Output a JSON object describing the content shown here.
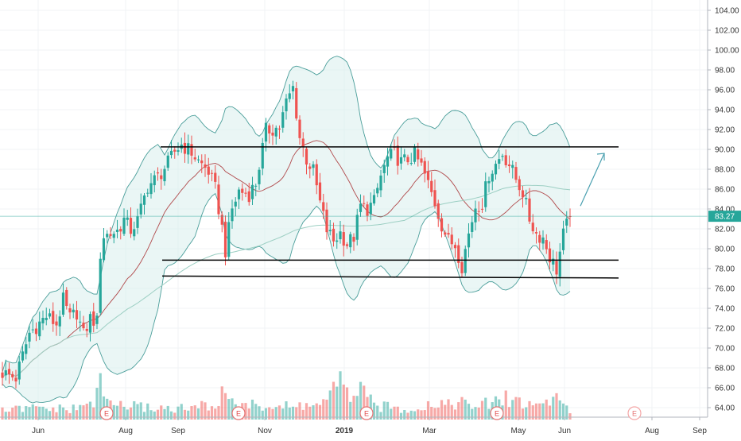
{
  "chart_data": {
    "type": "candlestick",
    "y_axis": {
      "ticks": [
        "104.00",
        "102.00",
        "100.00",
        "98.00",
        "96.00",
        "94.00",
        "92.00",
        "90.00",
        "88.00",
        "86.00",
        "84.00",
        "82.00",
        "80.00",
        "78.00",
        "76.00",
        "74.00",
        "72.00",
        "70.00",
        "68.00",
        "66.00",
        "64.00"
      ],
      "range": [
        63.0,
        105.2
      ],
      "position": "right"
    },
    "x_axis": {
      "ticks": [
        {
          "label": "Jun",
          "bold": false
        },
        {
          "label": "Aug",
          "bold": false
        },
        {
          "label": "Sep",
          "bold": false
        },
        {
          "label": "Nov",
          "bold": false
        },
        {
          "label": "2019",
          "bold": true
        },
        {
          "label": "Mar",
          "bold": false
        },
        {
          "label": "May",
          "bold": false
        },
        {
          "label": "Jun",
          "bold": false
        },
        {
          "label": "Aug",
          "bold": false
        },
        {
          "label": "Sep",
          "bold": false
        }
      ]
    },
    "last_price": {
      "label": "83.27",
      "value": 83.27,
      "color": "#26a69a"
    },
    "earnings_markers": [
      {
        "label": "E",
        "upcoming": false
      },
      {
        "label": "E",
        "upcoming": false
      },
      {
        "label": "E",
        "upcoming": false
      },
      {
        "label": "E",
        "upcoming": false
      },
      {
        "label": "E",
        "upcoming": true
      }
    ],
    "colors": {
      "up": "#26a69a",
      "down": "#ef5350",
      "bollinger_band": "#4a9e9a",
      "bollinger_fill": "#d9efed",
      "ma_short": "#b0484a",
      "ma_long": "#9ccfc3",
      "trendline": "#000000",
      "projection_arrow": "#4aa0b0",
      "axis_text": "#333333"
    },
    "price_path": [
      [
        0,
        67.5
      ],
      [
        4,
        67.0
      ],
      [
        8,
        71.5
      ],
      [
        13,
        73.2
      ],
      [
        16,
        72.4
      ],
      [
        18,
        74.8
      ],
      [
        20,
        73.0
      ],
      [
        22,
        73.6
      ],
      [
        24,
        71.3
      ],
      [
        26,
        73.0
      ],
      [
        28,
        72.6
      ],
      [
        29,
        79.5
      ],
      [
        30,
        81.3
      ],
      [
        32,
        81.5
      ],
      [
        34,
        81.8
      ],
      [
        36,
        82.9
      ],
      [
        38,
        81.9
      ],
      [
        40,
        82.8
      ],
      [
        43,
        86.3
      ],
      [
        46,
        87.2
      ],
      [
        49,
        88.6
      ],
      [
        51,
        89.8
      ],
      [
        53,
        90.5
      ],
      [
        56,
        89.7
      ],
      [
        58,
        88.8
      ],
      [
        61,
        87.8
      ],
      [
        63,
        86.0
      ],
      [
        65,
        82.1
      ],
      [
        66,
        79.8
      ],
      [
        68,
        84.0
      ],
      [
        70,
        85.8
      ],
      [
        73,
        85.5
      ],
      [
        75,
        86.6
      ],
      [
        78,
        91.9
      ],
      [
        82,
        92.2
      ],
      [
        84,
        94.7
      ],
      [
        86,
        96.2
      ],
      [
        88,
        91.2
      ],
      [
        90,
        89.0
      ],
      [
        92,
        87.8
      ],
      [
        94,
        84.6
      ],
      [
        96,
        81.9
      ],
      [
        98,
        80.8
      ],
      [
        100,
        81.6
      ],
      [
        102,
        80.5
      ],
      [
        104,
        81.2
      ],
      [
        106,
        84.3
      ],
      [
        108,
        84.0
      ],
      [
        110,
        84.7
      ],
      [
        112,
        87.3
      ],
      [
        114,
        89.1
      ],
      [
        116,
        89.5
      ],
      [
        118,
        88.7
      ],
      [
        120,
        89.0
      ],
      [
        122,
        89.4
      ],
      [
        124,
        88.3
      ],
      [
        126,
        86.5
      ],
      [
        128,
        84.6
      ],
      [
        130,
        82.4
      ],
      [
        132,
        80.8
      ],
      [
        134,
        80.4
      ],
      [
        136,
        78.3
      ],
      [
        138,
        81.5
      ],
      [
        140,
        84.3
      ],
      [
        142,
        84.6
      ],
      [
        144,
        87.5
      ],
      [
        146,
        88.5
      ],
      [
        148,
        89.6
      ],
      [
        150,
        88.5
      ],
      [
        152,
        87.0
      ],
      [
        154,
        85.7
      ],
      [
        156,
        83.0
      ],
      [
        158,
        81.5
      ],
      [
        160,
        81.1
      ],
      [
        162,
        79.2
      ],
      [
        164,
        77.9
      ],
      [
        166,
        81.4
      ],
      [
        168,
        83.27
      ]
    ],
    "volume_path": [
      [
        0,
        0.25
      ],
      [
        10,
        0.32
      ],
      [
        20,
        0.28
      ],
      [
        24,
        0.35
      ],
      [
        27,
        0.55
      ],
      [
        29,
        0.9
      ],
      [
        32,
        0.45
      ],
      [
        40,
        0.35
      ],
      [
        55,
        0.3
      ],
      [
        64,
        0.45
      ],
      [
        66,
        0.85
      ],
      [
        70,
        0.4
      ],
      [
        85,
        0.35
      ],
      [
        95,
        0.45
      ],
      [
        100,
        1.0
      ],
      [
        103,
        0.5
      ],
      [
        104,
        1.0
      ],
      [
        110,
        0.38
      ],
      [
        120,
        0.3
      ],
      [
        128,
        0.45
      ],
      [
        134,
        0.5
      ],
      [
        140,
        0.35
      ],
      [
        148,
        0.55
      ],
      [
        150,
        0.6
      ],
      [
        156,
        0.4
      ],
      [
        160,
        0.45
      ],
      [
        164,
        0.65
      ],
      [
        168,
        0.3
      ]
    ],
    "rsi_like_flat_zone": null
  }
}
